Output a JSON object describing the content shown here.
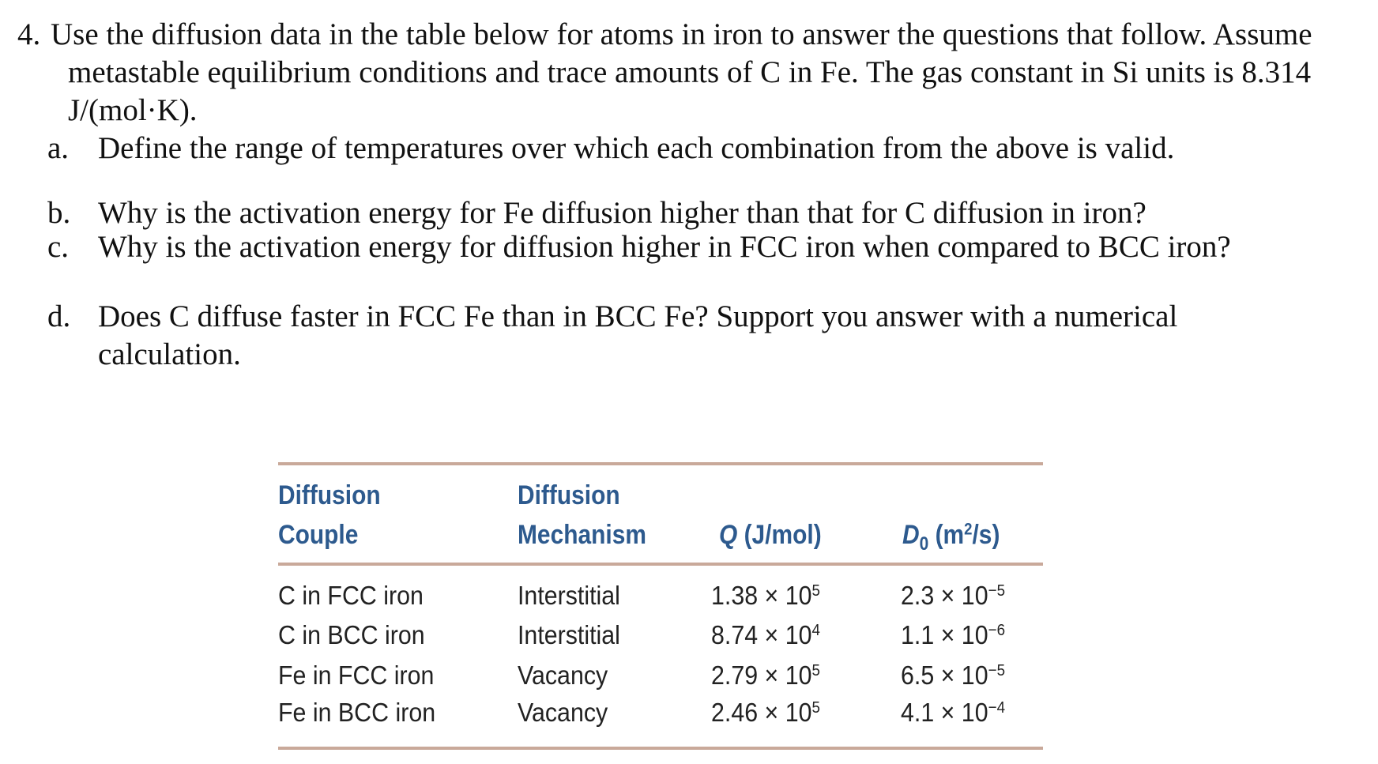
{
  "question": {
    "number": "4.",
    "text": "Use the diffusion data in the table below for atoms in iron to answer the questions that follow. Assume metastable equilibrium conditions and trace amounts of C in Fe. The gas constant in Si units is 8.314 J/(mol·K).",
    "items": [
      {
        "label": "a.",
        "text": "Define the range of temperatures over which each combination from the above is valid."
      },
      {
        "label": "b.",
        "text": "Why is the activation energy for Fe diffusion higher than that for C diffusion in iron?"
      },
      {
        "label": "c.",
        "text": "Why is the activation energy for diffusion higher in FCC iron when compared to BCC iron?"
      },
      {
        "label": "d.",
        "text": "Does C diffuse faster in FCC Fe than in BCC Fe? Support you answer with a numerical calculation."
      }
    ]
  },
  "table": {
    "headers": [
      {
        "line1": "Diffusion",
        "line2": "Couple"
      },
      {
        "line1": "Diffusion",
        "line2": "Mechanism"
      },
      {
        "symbol": "Q",
        "unit": "(J/mol)"
      },
      {
        "symbol": "D",
        "subscript": "0",
        "unit": "(m",
        "unit_sup": "2",
        "unit_end": "/s)"
      }
    ],
    "rows": [
      [
        "C in FCC iron",
        "Interstitial",
        {
          "base": "1.38 × 10",
          "exp": "5"
        },
        {
          "base": "2.3 × 10",
          "exp": "−5"
        }
      ],
      [
        "C in BCC iron",
        "Interstitial",
        {
          "base": "8.74 × 10",
          "exp": "4"
        },
        {
          "base": "1.1 × 10",
          "exp": "−6"
        }
      ],
      [
        "Fe in FCC iron",
        "Vacancy",
        {
          "base": "2.79 × 10",
          "exp": "5"
        },
        {
          "base": "6.5 × 10",
          "exp": "−5"
        }
      ],
      [
        "Fe in BCC iron",
        "Vacancy",
        {
          "base": "2.46 × 10",
          "exp": "5"
        },
        {
          "base": "4.1 × 10",
          "exp": "−4"
        }
      ]
    ]
  }
}
